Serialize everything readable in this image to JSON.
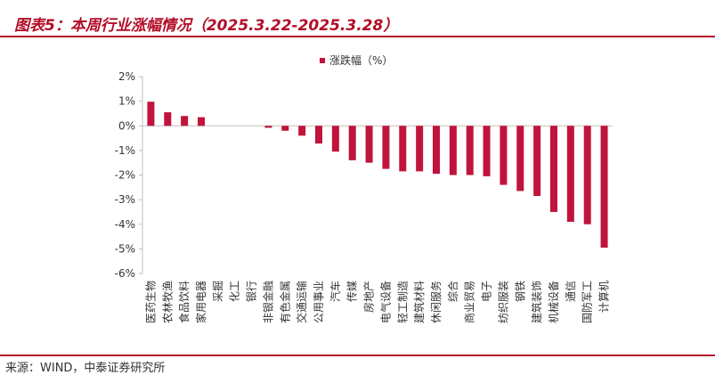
{
  "figure": {
    "title": "图表5：本周行业涨幅情况（2025.3.22-2025.3.28）",
    "source": "来源：WIND，中泰证券研究所"
  },
  "colors": {
    "accent": "#b30d27",
    "bar": "#c0143c",
    "axis": "#bfbfbf",
    "text": "#333333"
  },
  "chart_data": {
    "type": "bar",
    "title": "",
    "xlabel": "",
    "ylabel": "",
    "legend": {
      "position": "top-right",
      "entries": [
        "涨跌幅（%）"
      ]
    },
    "grid": false,
    "ylim": [
      -6,
      2
    ],
    "yticks": [
      2,
      1,
      0,
      -1,
      -2,
      -3,
      -4,
      -5,
      -6
    ],
    "ytick_labels": [
      "2%",
      "1%",
      "0%",
      "-1%",
      "-2%",
      "-3%",
      "-4%",
      "-5%",
      "-6%"
    ],
    "categories": [
      "医药生物",
      "农林牧渔",
      "食品饮料",
      "家用电器",
      "采掘",
      "化工",
      "银行",
      "非银金融",
      "有色金属",
      "交通运输",
      "公用事业",
      "汽车",
      "传媒",
      "房地产",
      "电气设备",
      "轻工制造",
      "建筑材料",
      "休闲服务",
      "综合",
      "商业贸易",
      "电子",
      "纺织服装",
      "钢铁",
      "建筑装饰",
      "机械设备",
      "通信",
      "国防军工",
      "计算机"
    ],
    "series": [
      {
        "name": "涨跌幅（%）",
        "values": [
          0.98,
          0.55,
          0.4,
          0.35,
          0.0,
          0.0,
          0.0,
          -0.08,
          -0.2,
          -0.4,
          -0.72,
          -1.05,
          -1.4,
          -1.5,
          -1.75,
          -1.85,
          -1.85,
          -1.95,
          -2.0,
          -2.0,
          -2.05,
          -2.4,
          -2.65,
          -2.85,
          -3.5,
          -3.9,
          -4.0,
          -4.95
        ]
      }
    ]
  }
}
